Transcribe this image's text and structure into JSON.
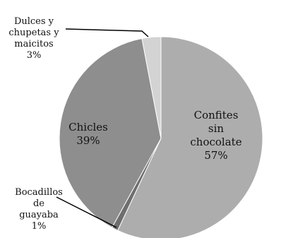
{
  "chart_data": {
    "type": "pie",
    "title": "",
    "start_angle_deg": 0,
    "direction": "clockwise",
    "slices": [
      {
        "name": "Confites sin chocolate",
        "label_lines": [
          "Confites",
          "sin",
          "chocolate",
          "57%"
        ],
        "percent": 57,
        "color": "#adadad"
      },
      {
        "name": "Bocadillos de guayaba",
        "label_lines": [
          "Bocadillos",
          "de",
          "guayaba",
          "1%"
        ],
        "percent": 1,
        "color": "#6e6e6e"
      },
      {
        "name": "Chicles",
        "label_lines": [
          "Chicles",
          "39%"
        ],
        "percent": 39,
        "color": "#8e8e8e"
      },
      {
        "name": "Dulces y chupetas y maicitos",
        "label_lines": [
          "Dulces y",
          "chupetas y",
          "maicitos",
          "3%"
        ],
        "percent": 3,
        "color": "#d3d3d3"
      }
    ]
  }
}
